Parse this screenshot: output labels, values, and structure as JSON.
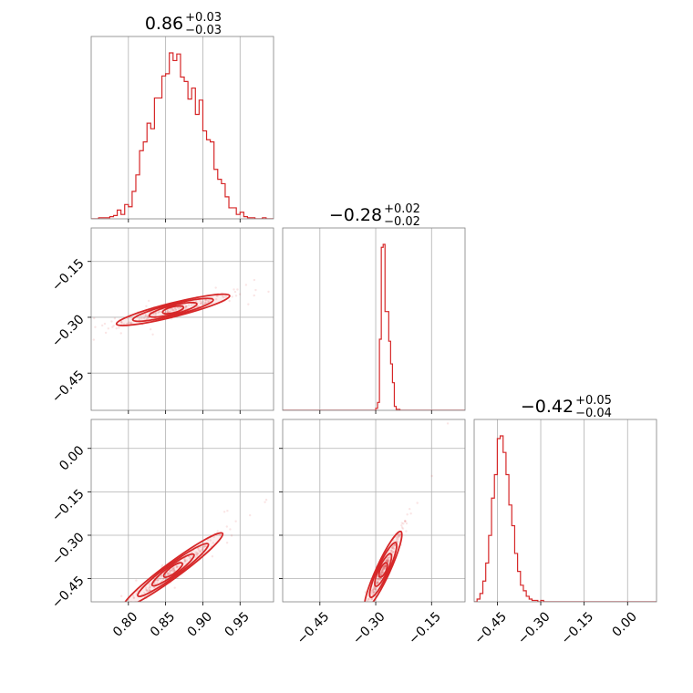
{
  "chart_data": {
    "type": "corner",
    "color": "#d62728",
    "parameters": [
      {
        "median": "0.86",
        "plus": "+0.03",
        "minus": "−0.03",
        "range": [
          0.75,
          0.995
        ],
        "ticks": [
          0.8,
          0.85,
          0.9,
          0.95
        ],
        "tick_labels": [
          "0.80",
          "0.85",
          "0.90",
          "0.95"
        ]
      },
      {
        "median": "−0.28",
        "plus": "+0.02",
        "minus": "−0.02",
        "range": [
          -0.55,
          -0.06
        ],
        "ticks": [
          -0.45,
          -0.3,
          -0.15
        ],
        "tick_labels": [
          "−0.45",
          "−0.30",
          "−0.15"
        ]
      },
      {
        "median": "−0.42",
        "plus": "+0.05",
        "minus": "−0.04",
        "range": [
          -0.53,
          0.1
        ],
        "ticks": [
          -0.45,
          -0.3,
          -0.15,
          0.0
        ],
        "tick_labels": [
          "−0.45",
          "−0.30",
          "−0.15",
          "0.00"
        ]
      }
    ],
    "row_tick_labels": {
      "row1": [
        "−0.15",
        "−0.30",
        "−0.45"
      ],
      "row2": [
        "0.00",
        "−0.15",
        "−0.30",
        "−0.45"
      ]
    },
    "histograms": [
      {
        "param": 0,
        "bins": [
          0.75,
          0.755,
          0.76,
          0.765,
          0.77,
          0.775,
          0.78,
          0.785,
          0.79,
          0.795,
          0.8,
          0.805,
          0.81,
          0.815,
          0.82,
          0.825,
          0.83,
          0.835,
          0.84,
          0.845,
          0.85,
          0.855,
          0.86,
          0.865,
          0.87,
          0.875,
          0.88,
          0.885,
          0.89,
          0.895,
          0.9,
          0.905,
          0.91,
          0.915,
          0.92,
          0.925,
          0.93,
          0.935,
          0.94,
          0.945,
          0.95,
          0.955,
          0.96,
          0.965,
          0.97,
          0.975,
          0.98,
          0.985,
          0.99,
          0.995
        ],
        "counts": [
          0,
          0,
          1,
          1,
          1,
          2,
          3,
          8,
          4,
          13,
          11,
          25,
          40,
          62,
          70,
          87,
          82,
          110,
          110,
          130,
          132,
          151,
          144,
          150,
          129,
          125,
          109,
          119,
          95,
          108,
          80,
          72,
          70,
          45,
          36,
          32,
          20,
          10,
          10,
          4,
          6,
          2,
          1,
          1,
          0,
          0,
          1,
          0,
          0
        ]
      },
      {
        "param": 1,
        "bins": [
          -0.3,
          -0.295,
          -0.29,
          -0.285,
          -0.28,
          -0.275,
          -0.27,
          -0.265,
          -0.26,
          -0.255,
          -0.25,
          -0.245,
          -0.24,
          -0.235,
          -0.23
        ],
        "counts": [
          2,
          8,
          72,
          165,
          168,
          100,
          100,
          70,
          47,
          28,
          4,
          1,
          1,
          0
        ]
      },
      {
        "param": 2,
        "bins": [
          -0.52,
          -0.51,
          -0.5,
          -0.49,
          -0.48,
          -0.47,
          -0.46,
          -0.45,
          -0.44,
          -0.43,
          -0.42,
          -0.41,
          -0.4,
          -0.39,
          -0.38,
          -0.37,
          -0.36,
          -0.35,
          -0.34,
          -0.33,
          -0.32,
          -0.31,
          -0.3,
          -0.29,
          -0.28,
          -0.27,
          -0.26,
          -0.25,
          -0.24,
          -0.23
        ],
        "counts": [
          2,
          6,
          15,
          28,
          48,
          75,
          92,
          118,
          120,
          108,
          92,
          70,
          55,
          35,
          22,
          12,
          8,
          4,
          2,
          1,
          1,
          0,
          1,
          0,
          0,
          0,
          0,
          0,
          0
        ]
      }
    ],
    "correlations": [
      {
        "x": 0,
        "y": 1,
        "center": [
          0.86,
          -0.28
        ],
        "slope": 0.5,
        "spread": 0.04,
        "width": 0.008
      },
      {
        "x": 0,
        "y": 2,
        "center": [
          0.86,
          -0.42
        ],
        "slope": 1.9,
        "spread": 0.035,
        "width": 0.012
      },
      {
        "x": 1,
        "y": 2,
        "center": [
          -0.28,
          -0.42
        ],
        "slope": 2.8,
        "spread": 0.025,
        "width": 0.01
      }
    ]
  }
}
